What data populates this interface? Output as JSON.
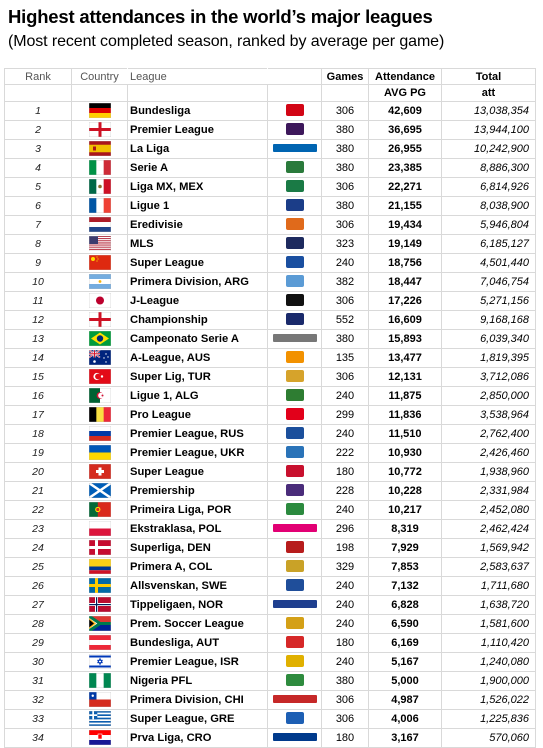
{
  "title": "Highest attendances in the world’s major leagues",
  "subtitle": "(Most recent completed season, ranked by average per game)",
  "headers": {
    "rank": "Rank",
    "country": "Country",
    "league": "League",
    "games": "Games",
    "attendance": "Attendance",
    "attendance_sub": "AVG PG",
    "total": "Total",
    "total_sub": "att"
  },
  "rows": [
    {
      "rank": "1",
      "flag": "germany",
      "league": "Bundesliga",
      "logo": "bundesliga-logo",
      "games": "306",
      "avg": "42,609",
      "total": "13,038,354"
    },
    {
      "rank": "2",
      "flag": "england",
      "league": "Premier League",
      "logo": "premier-league-logo",
      "games": "380",
      "avg": "36,695",
      "total": "13,944,100"
    },
    {
      "rank": "3",
      "flag": "spain",
      "league": "La Liga",
      "logo": "liga-bbva-logo",
      "logo_text": "LIGABBVA",
      "games": "380",
      "avg": "26,955",
      "total": "10,242,900"
    },
    {
      "rank": "4",
      "flag": "italy",
      "league": "Serie A",
      "logo": "serie-a-logo",
      "games": "380",
      "avg": "23,385",
      "total": "8,886,300"
    },
    {
      "rank": "5",
      "flag": "mexico",
      "league": "Liga MX, MEX",
      "logo": "liga-mx-logo",
      "games": "306",
      "avg": "22,271",
      "total": "6,814,926"
    },
    {
      "rank": "6",
      "flag": "france",
      "league": "Ligue 1",
      "logo": "ligue-1-logo",
      "games": "380",
      "avg": "21,155",
      "total": "8,038,900"
    },
    {
      "rank": "7",
      "flag": "netherlands",
      "league": "Eredivisie",
      "logo": "eredivisie-logo",
      "games": "306",
      "avg": "19,434",
      "total": "5,946,804"
    },
    {
      "rank": "8",
      "flag": "usa",
      "league": "MLS",
      "logo": "mls-logo",
      "games": "323",
      "avg": "19,149",
      "total": "6,185,127"
    },
    {
      "rank": "9",
      "flag": "china",
      "league": "Super League",
      "logo": "csl-logo",
      "games": "240",
      "avg": "18,756",
      "total": "4,501,440"
    },
    {
      "rank": "10",
      "flag": "argentina",
      "league": "Primera Division, ARG",
      "logo": "afa-logo",
      "games": "382",
      "avg": "18,447",
      "total": "7,046,754"
    },
    {
      "rank": "11",
      "flag": "japan",
      "league": "J-League",
      "logo": "j-league-logo",
      "games": "306",
      "avg": "17,226",
      "total": "5,271,156"
    },
    {
      "rank": "12",
      "flag": "england",
      "league": "Championship",
      "logo": "sky-bet-logo",
      "games": "552",
      "avg": "16,609",
      "total": "9,168,168"
    },
    {
      "rank": "13",
      "flag": "brazil",
      "league": "Campeonato Serie A",
      "logo": "brasileirao-logo",
      "logo_text": "BRASILEIRÃO CHEVROLET",
      "games": "380",
      "avg": "15,893",
      "total": "6,039,340"
    },
    {
      "rank": "14",
      "flag": "australia",
      "league": "A-League, AUS",
      "logo": "a-league-logo",
      "games": "135",
      "avg": "13,477",
      "total": "1,819,395"
    },
    {
      "rank": "15",
      "flag": "turkey",
      "league": "Super Lig, TUR",
      "logo": "super-lig-logo",
      "games": "306",
      "avg": "12,131",
      "total": "3,712,086"
    },
    {
      "rank": "16",
      "flag": "algeria",
      "league": "Ligue 1, ALG",
      "logo": "algeria-ligue-logo",
      "games": "240",
      "avg": "11,875",
      "total": "2,850,000"
    },
    {
      "rank": "17",
      "flag": "belgium",
      "league": "Pro League",
      "logo": "pro-league-logo",
      "games": "299",
      "avg": "11,836",
      "total": "3,538,964"
    },
    {
      "rank": "18",
      "flag": "russia",
      "league": "Premier League, RUS",
      "logo": "rfpl-logo",
      "games": "240",
      "avg": "11,510",
      "total": "2,762,400"
    },
    {
      "rank": "19",
      "flag": "ukraine",
      "league": "Premier League, UKR",
      "logo": "upl-logo",
      "games": "222",
      "avg": "10,930",
      "total": "2,426,460"
    },
    {
      "rank": "20",
      "flag": "switzerland",
      "league": "Super League",
      "logo": "swiss-sl-logo",
      "games": "180",
      "avg": "10,772",
      "total": "1,938,960"
    },
    {
      "rank": "21",
      "flag": "scotland",
      "league": "Premiership",
      "logo": "spfl-logo",
      "games": "228",
      "avg": "10,228",
      "total": "2,331,984"
    },
    {
      "rank": "22",
      "flag": "portugal",
      "league": "Primeira Liga, POR",
      "logo": "liga-nos-logo",
      "games": "240",
      "avg": "10,217",
      "total": "2,452,080"
    },
    {
      "rank": "23",
      "flag": "poland",
      "league": "Ekstraklasa, POL",
      "logo": "ekstraklasa-logo",
      "logo_text": "EKSTRAKLASA",
      "games": "296",
      "avg": "8,319",
      "total": "2,462,424"
    },
    {
      "rank": "24",
      "flag": "denmark",
      "league": "Superliga, DEN",
      "logo": "superliga-logo",
      "games": "198",
      "avg": "7,929",
      "total": "1,569,942"
    },
    {
      "rank": "25",
      "flag": "colombia",
      "league": "Primera A, COL",
      "logo": "dimayor-logo",
      "games": "329",
      "avg": "7,853",
      "total": "2,583,637"
    },
    {
      "rank": "26",
      "flag": "sweden",
      "league": "Allsvenskan, SWE",
      "logo": "allsvenskan-logo",
      "games": "240",
      "avg": "7,132",
      "total": "1,711,680"
    },
    {
      "rank": "27",
      "flag": "norway",
      "league": "Tippeligaen, NOR",
      "logo": "tippeligaen-logo",
      "logo_text": "TIPPELIGAEN",
      "games": "240",
      "avg": "6,828",
      "total": "1,638,720"
    },
    {
      "rank": "28",
      "flag": "south-africa",
      "league": "Prem. Soccer League",
      "logo": "psl-logo",
      "games": "240",
      "avg": "6,590",
      "total": "1,581,600"
    },
    {
      "rank": "29",
      "flag": "austria",
      "league": "Bundesliga, AUT",
      "logo": "austria-bl-logo",
      "games": "180",
      "avg": "6,169",
      "total": "1,110,420"
    },
    {
      "rank": "30",
      "flag": "israel",
      "league": "Premier League, ISR",
      "logo": "ligat-haal-logo",
      "games": "240",
      "avg": "5,167",
      "total": "1,240,080"
    },
    {
      "rank": "31",
      "flag": "nigeria",
      "league": "Nigeria PFL",
      "logo": "npfl-logo",
      "games": "380",
      "avg": "5,000",
      "total": "1,900,000"
    },
    {
      "rank": "32",
      "flag": "chile",
      "league": "Primera Division, CHI",
      "logo": "chile-nacional-logo",
      "logo_text": "NACIONAL",
      "games": "306",
      "avg": "4,987",
      "total": "1,526,022"
    },
    {
      "rank": "33",
      "flag": "greece",
      "league": "Super League, GRE",
      "logo": "greek-sl-logo",
      "games": "306",
      "avg": "4,006",
      "total": "1,225,836"
    },
    {
      "rank": "34",
      "flag": "croatia",
      "league": "Prva Liga, CRO",
      "logo": "prva-hnl-logo",
      "logo_text": "MAX PRVA HNL",
      "games": "180",
      "avg": "3,167",
      "total": "570,060"
    }
  ],
  "colors": {
    "grid_line": "#d9d9d9",
    "header_text": "#555555"
  }
}
